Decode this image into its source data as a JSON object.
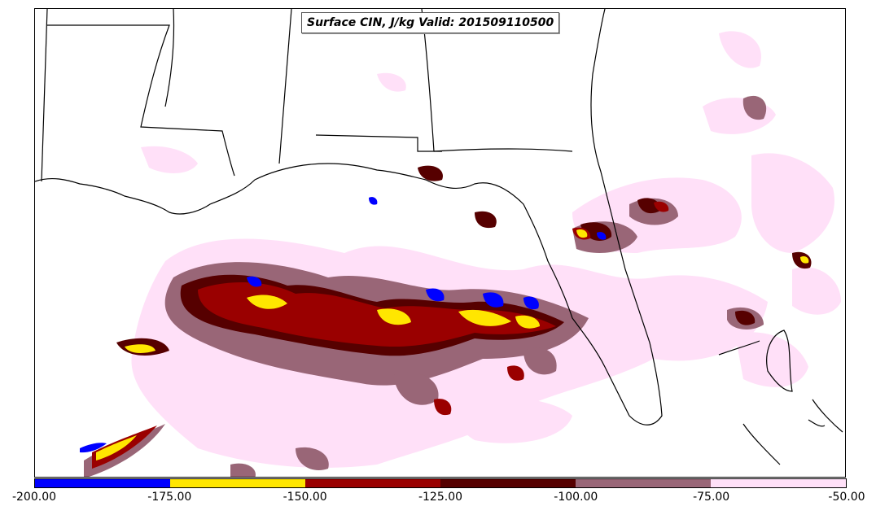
{
  "title": "Surface CIN, J/kg Valid: 201509110500",
  "colorbar": {
    "ticks": [
      "-200.00",
      "-175.00",
      "-150.00",
      "-125.00",
      "-100.00",
      "-75.00",
      "-50.00"
    ],
    "bins": [
      {
        "range": [
          -200,
          -175
        ],
        "color": "#0000ff"
      },
      {
        "range": [
          -175,
          -150
        ],
        "color": "#ffe600"
      },
      {
        "range": [
          -150,
          -125
        ],
        "color": "#9a0000"
      },
      {
        "range": [
          -125,
          -100
        ],
        "color": "#560000"
      },
      {
        "range": [
          -100,
          -75
        ],
        "color": "#996677"
      },
      {
        "range": [
          -75,
          -50
        ],
        "color": "#ffe0f8"
      }
    ]
  }
}
